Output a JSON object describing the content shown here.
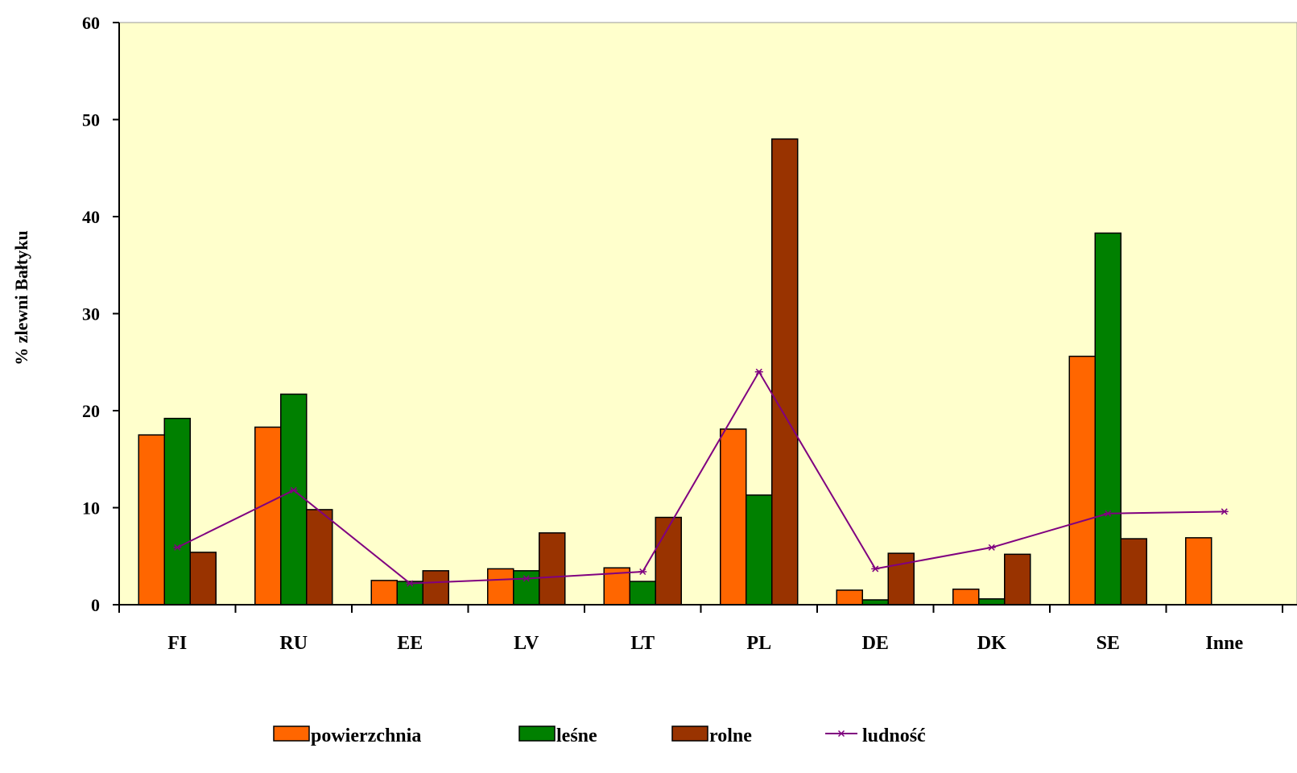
{
  "chart_data": {
    "type": "bar",
    "title": "",
    "xlabel": "",
    "ylabel": "% zlewni Bałtyku",
    "ylim": [
      0,
      60
    ],
    "yticks": [
      0,
      10,
      20,
      30,
      40,
      50,
      60
    ],
    "grid": false,
    "legend_position": "bottom",
    "plot_background": "#FFFFCC",
    "categories": [
      "FI",
      "RU",
      "EE",
      "LV",
      "LT",
      "PL",
      "DE",
      "DK",
      "SE",
      "Inne"
    ],
    "series": [
      {
        "name": "powierzchnia",
        "kind": "bar",
        "color": "#FF6600",
        "values": [
          17.5,
          18.3,
          2.5,
          3.7,
          3.8,
          18.1,
          1.5,
          1.6,
          25.6,
          6.9
        ]
      },
      {
        "name": "leśne",
        "kind": "bar",
        "color": "#008000",
        "values": [
          19.2,
          21.7,
          2.4,
          3.5,
          2.4,
          11.3,
          0.5,
          0.6,
          38.3,
          null
        ]
      },
      {
        "name": "rolne",
        "kind": "bar",
        "color": "#993300",
        "values": [
          5.4,
          9.8,
          3.5,
          7.4,
          9.0,
          48.0,
          5.3,
          5.2,
          6.8,
          null
        ]
      },
      {
        "name": "ludność",
        "kind": "line",
        "color": "#800080",
        "values": [
          5.9,
          11.8,
          2.2,
          2.7,
          3.4,
          24.0,
          3.7,
          5.9,
          9.4,
          9.6
        ]
      }
    ]
  }
}
